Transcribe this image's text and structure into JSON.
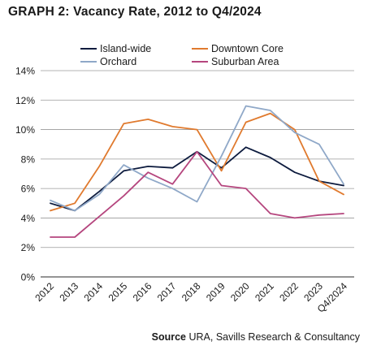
{
  "chart_data": {
    "type": "line",
    "title": "GRAPH 2: Vacancy Rate, 2012 to Q4/2024",
    "source_label": "Source",
    "source_text": "URA, Savills Research & Consultancy",
    "categories": [
      "2012",
      "2013",
      "2014",
      "2015",
      "2016",
      "2017",
      "2018",
      "2019",
      "2020",
      "2021",
      "2022",
      "2023",
      "Q4/2024"
    ],
    "y_ticks": [
      "0%",
      "2%",
      "4%",
      "6%",
      "8%",
      "10%",
      "12%",
      "14%"
    ],
    "ylim": [
      0,
      14
    ],
    "grid": "horizontal",
    "legend_placement": "top",
    "series": [
      {
        "name": "Island-wide",
        "color": "#0d1b3e",
        "values": [
          5.0,
          4.5,
          5.8,
          7.2,
          7.5,
          7.4,
          8.5,
          7.4,
          8.8,
          8.1,
          7.1,
          6.5,
          6.2
        ]
      },
      {
        "name": "Downtown Core",
        "color": "#e07a2e",
        "values": [
          4.5,
          5.0,
          7.5,
          10.4,
          10.7,
          10.2,
          10.0,
          7.2,
          10.5,
          11.1,
          10.0,
          6.5,
          5.6
        ]
      },
      {
        "name": "Orchard",
        "color": "#8fa8c8",
        "values": [
          5.2,
          4.5,
          5.6,
          7.6,
          6.7,
          6.0,
          5.1,
          8.2,
          11.6,
          11.3,
          9.8,
          9.0,
          6.3
        ]
      },
      {
        "name": "Suburban Area",
        "color": "#b5467e",
        "values": [
          2.7,
          2.7,
          4.1,
          5.5,
          7.1,
          6.3,
          8.5,
          6.2,
          6.0,
          4.3,
          4.0,
          4.2,
          4.3
        ]
      }
    ]
  }
}
